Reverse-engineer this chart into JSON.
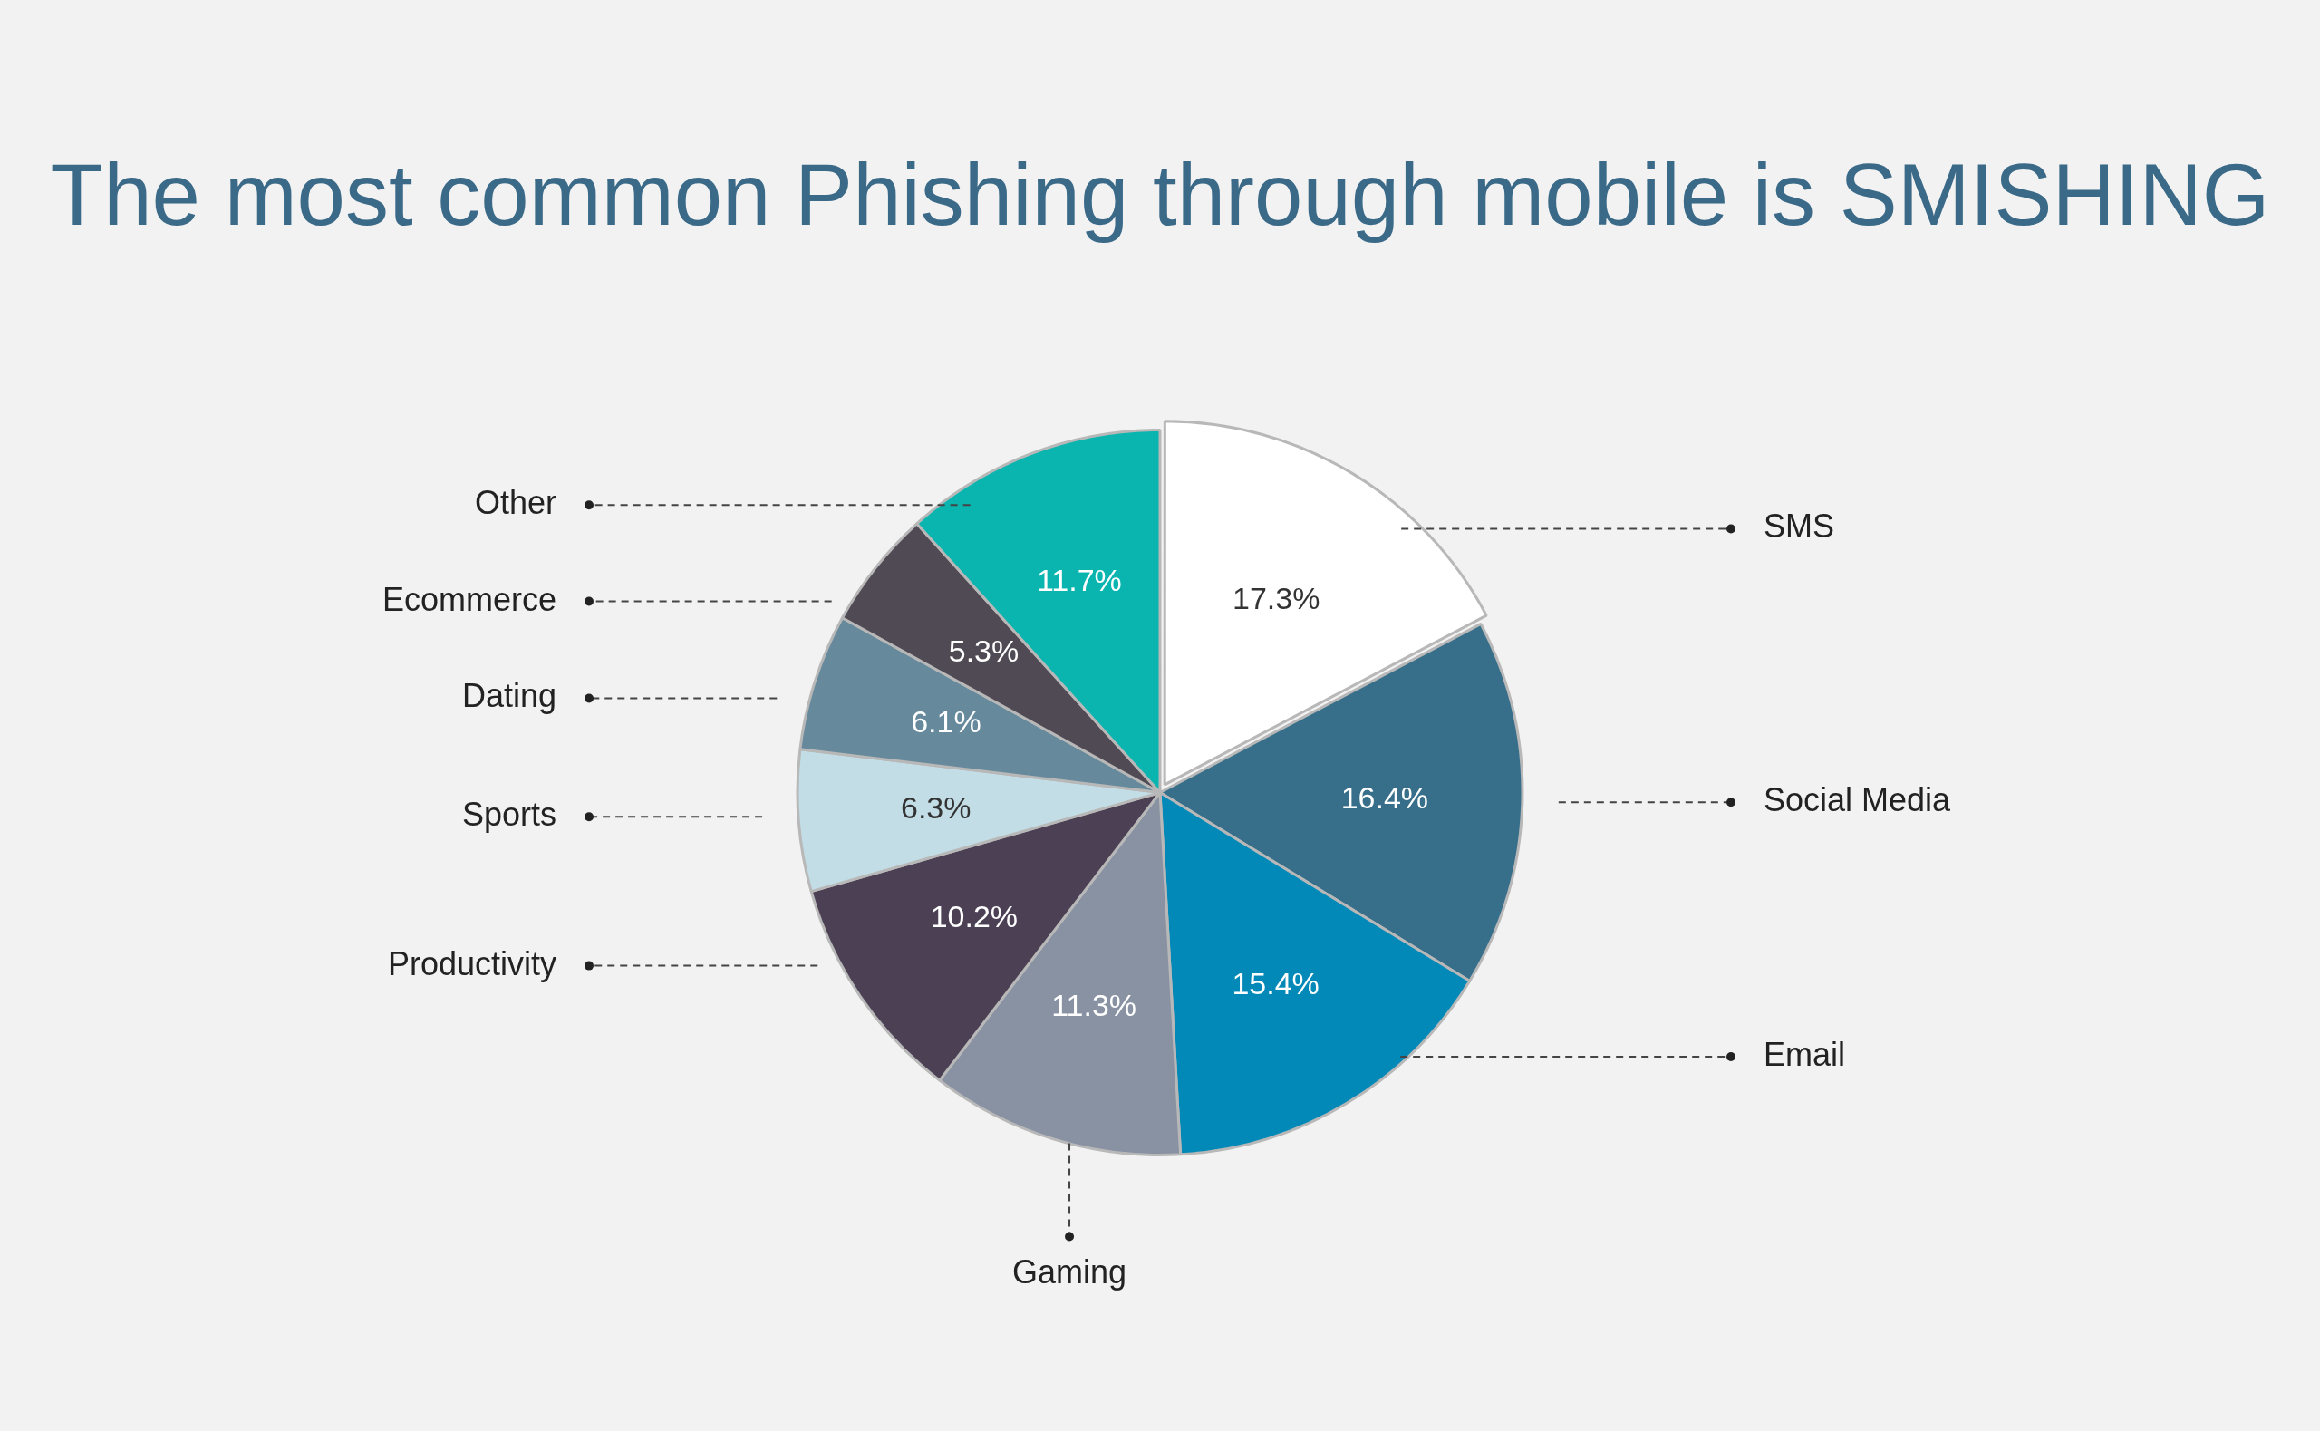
{
  "chart_data": {
    "type": "pie",
    "title": "The most common Phishing through mobile is SMISHING",
    "categories": [
      "SMS",
      "Social Media",
      "Email",
      "Gaming",
      "Productivity",
      "Sports",
      "Dating",
      "Ecommerce",
      "Other"
    ],
    "values": [
      17.3,
      16.4,
      15.4,
      11.3,
      10.2,
      6.3,
      6.1,
      5.3,
      11.7
    ],
    "value_labels": [
      "17.3%",
      "16.4%",
      "15.4%",
      "11.3%",
      "10.2%",
      "6.3%",
      "6.1%",
      "5.3%",
      "11.7%"
    ],
    "colors": [
      "#ffffff",
      "#376f8b",
      "#0389b8",
      "#8892a3",
      "#4c4055",
      "#c2dde5",
      "#668a9c",
      "#504a54",
      "#0ab5b0"
    ],
    "legend": false
  }
}
